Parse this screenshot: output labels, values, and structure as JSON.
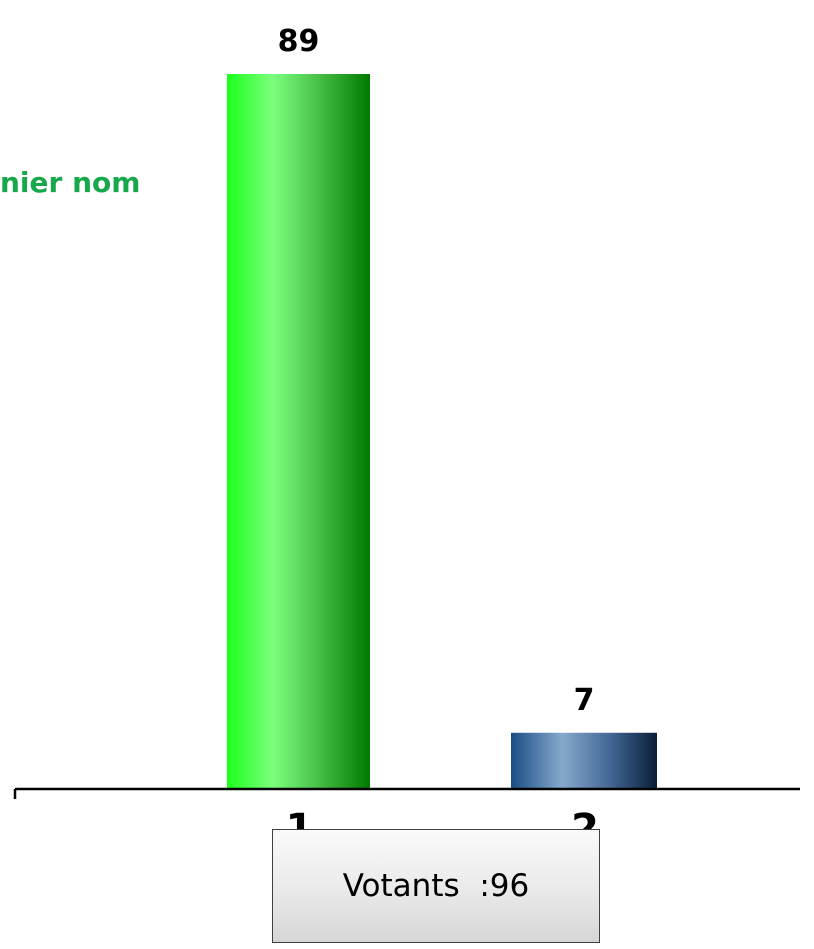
{
  "header_text": "nier nom",
  "voters_label": "Votants  :96",
  "chart_data": {
    "type": "bar",
    "categories": [
      "1",
      "2"
    ],
    "values": [
      89,
      7
    ],
    "data_labels": [
      "89",
      "7"
    ],
    "bar_colors": [
      "#22ff22",
      "#1f4e85"
    ],
    "ylim": [
      0,
      89
    ],
    "grid": false,
    "xlabel": "",
    "ylabel": ""
  }
}
